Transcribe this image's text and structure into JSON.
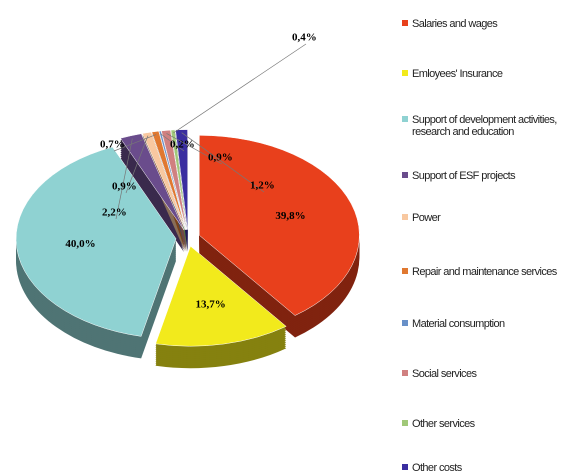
{
  "chart_data": {
    "type": "pie",
    "categories": [
      "Salaries and wages",
      "Emloyees' Insurance",
      "Support of development activities, research and education",
      "Support of ESF projects",
      "Power",
      "Repair and maintenance services",
      "Material consumption",
      "Social services",
      "Other services",
      "Other costs"
    ],
    "values": [
      39.8,
      13.7,
      40.0,
      2.2,
      0.9,
      0.7,
      0.2,
      0.9,
      0.4,
      1.2
    ],
    "value_labels": [
      "39,8%",
      "13,7%",
      "40,0%",
      "2,2%",
      "0,9%",
      "0,7%",
      "0,2%",
      "0,9%",
      "0,4%",
      "1,2%"
    ],
    "colors": [
      "#e8401c",
      "#f2ea1c",
      "#8fd2d2",
      "#6a4c8c",
      "#f8c8a0",
      "#e07830",
      "#6890c8",
      "#d08080",
      "#a0c878",
      "#3a2ea0"
    ],
    "legend": "right"
  }
}
